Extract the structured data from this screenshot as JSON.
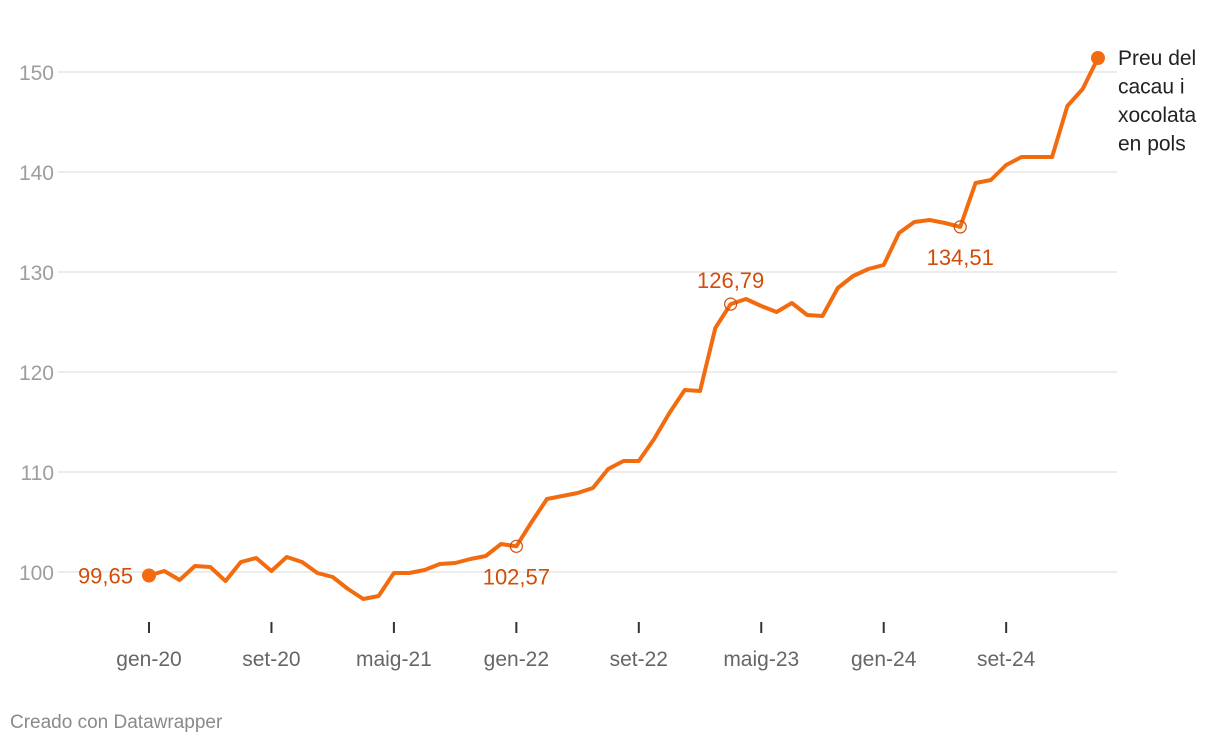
{
  "chart_data": {
    "type": "line",
    "title": "",
    "xlabel": "",
    "ylabel": "",
    "ylim": [
      95,
      152.5
    ],
    "y_ticks": [
      "100",
      "110",
      "120",
      "130",
      "140",
      "150"
    ],
    "x_ticks": [
      "gen-20",
      "set-20",
      "maig-21",
      "gen-22",
      "set-22",
      "maig-23",
      "gen-24",
      "set-24"
    ],
    "grid": true,
    "series": [
      {
        "name": "Preu del cacau i xocolata en pols",
        "label_lines": [
          "Preu del",
          "cacau i",
          "xocolata",
          "en pols"
        ],
        "color": "#f26b0f",
        "x": [
          "gen-20",
          "feb-20",
          "mar-20",
          "abr-20",
          "maig-20",
          "jun-20",
          "jul-20",
          "ag-20",
          "set-20",
          "oct-20",
          "nov-20",
          "des-20",
          "gen-21",
          "feb-21",
          "mar-21",
          "abr-21",
          "maig-21",
          "jun-21",
          "jul-21",
          "ag-21",
          "set-21",
          "oct-21",
          "nov-21",
          "des-21",
          "gen-22",
          "feb-22",
          "mar-22",
          "abr-22",
          "maig-22",
          "jun-22",
          "jul-22",
          "ag-22",
          "set-22",
          "oct-22",
          "nov-22",
          "des-22",
          "gen-23",
          "feb-23",
          "mar-23",
          "abr-23",
          "maig-23",
          "jun-23",
          "jul-23",
          "ag-23",
          "set-23",
          "oct-23",
          "nov-23",
          "des-23",
          "gen-24",
          "feb-24",
          "mar-24",
          "abr-24",
          "maig-24",
          "jun-24",
          "jul-24",
          "ag-24",
          "set-24",
          "oct-24",
          "nov-24",
          "des-24",
          "gen-25",
          "feb-25",
          "mar-25"
        ],
        "values": [
          99.65,
          100.1,
          99.2,
          100.6,
          100.5,
          99.1,
          101.0,
          101.4,
          100.1,
          101.5,
          101.0,
          99.9,
          99.5,
          98.3,
          97.3,
          97.6,
          99.9,
          99.9,
          100.2,
          100.8,
          100.9,
          101.3,
          101.6,
          102.8,
          102.57,
          105.0,
          107.3,
          107.6,
          107.9,
          108.4,
          110.3,
          111.1,
          111.1,
          113.3,
          115.9,
          118.2,
          118.1,
          124.4,
          126.79,
          127.3,
          126.6,
          126.0,
          126.9,
          125.7,
          125.6,
          128.4,
          129.6,
          130.3,
          130.7,
          133.9,
          135.0,
          135.2,
          134.9,
          134.51,
          138.9,
          139.2,
          140.7,
          141.5,
          141.5,
          141.5,
          146.6,
          148.3,
          151.4
        ]
      }
    ],
    "annotations": [
      {
        "x": "gen-20",
        "value": 99.65,
        "label": "99,65",
        "marker": "filled",
        "label_side": "left"
      },
      {
        "x": "gen-22",
        "value": 102.57,
        "label": "102,57",
        "marker": "ring",
        "label_side": "below"
      },
      {
        "x": "mar-23",
        "value": 126.79,
        "label": "126,79",
        "marker": "ring",
        "label_side": "above"
      },
      {
        "x": "jun-24",
        "value": 134.51,
        "label": "134,51",
        "marker": "ring",
        "label_side": "below"
      },
      {
        "x": "mar-25",
        "value": 151.4,
        "label": "",
        "marker": "filled",
        "label_side": "none"
      }
    ]
  },
  "credit": "Creado con Datawrapper"
}
